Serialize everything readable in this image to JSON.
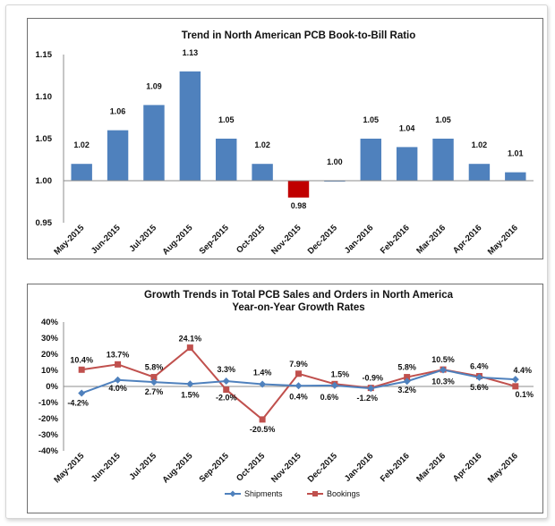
{
  "colors": {
    "bar": "#4f81bd",
    "bar_negative": "#c00000",
    "shipments": "#4f81bd",
    "bookings": "#c0504d",
    "axis": "#8c8c8c"
  },
  "chart_data": [
    {
      "type": "bar",
      "title": "Trend in North American PCB Book-to-Bill Ratio",
      "categories": [
        "May-2015",
        "Jun-2015",
        "Jul-2015",
        "Aug-2015",
        "Sep-2015",
        "Oct-2015",
        "Nov-2015",
        "Dec-2015",
        "Jan-2016",
        "Feb-2016",
        "Mar-2016",
        "Apr-2016",
        "May-2016"
      ],
      "values": [
        1.02,
        1.06,
        1.09,
        1.13,
        1.05,
        1.02,
        0.98,
        1.0,
        1.05,
        1.04,
        1.05,
        1.02,
        1.01
      ],
      "data_labels": [
        "1.02",
        "1.06",
        "1.09",
        "1.13",
        "1.05",
        "1.02",
        "0.98",
        "1.00",
        "1.05",
        "1.04",
        "1.05",
        "1.02",
        "1.01"
      ],
      "ylim": [
        0.95,
        1.15
      ],
      "yticks": [
        "0.95",
        "1.00",
        "1.05",
        "1.10",
        "1.15"
      ],
      "xlabel": "",
      "ylabel": "",
      "baseline": 1.0
    },
    {
      "type": "line",
      "title": "Growth Trends in Total PCB Sales and Orders in North America",
      "subtitle": "Year-on-Year Growth Rates",
      "categories": [
        "May-2015",
        "Jun-2015",
        "Jul-2015",
        "Aug-2015",
        "Sep-2015",
        "Oct-2015",
        "Nov-2015",
        "Dec-2015",
        "Jan-2016",
        "Feb-2016",
        "Mar-2016",
        "Apr-2016",
        "May-2016"
      ],
      "ylim": [
        -40,
        40
      ],
      "yticks": [
        "-40%",
        "-30%",
        "-20%",
        "-10%",
        "0%",
        "10%",
        "20%",
        "30%",
        "40%"
      ],
      "series": [
        {
          "name": "Shipments",
          "values": [
            -4.2,
            4.0,
            2.7,
            1.5,
            3.3,
            1.4,
            0.4,
            0.6,
            -1.2,
            3.2,
            10.3,
            5.6,
            4.4
          ],
          "labels": [
            "-4.2%",
            "4.0%",
            "2.7%",
            "1.5%",
            "",
            "",
            "0.4%",
            "0.6%",
            "-1.2%",
            "3.2%",
            "10.3%",
            "5.6%",
            "4.4%"
          ]
        },
        {
          "name": "Bookings",
          "values": [
            10.4,
            13.7,
            5.8,
            24.1,
            -2.0,
            -20.5,
            7.9,
            1.5,
            -0.9,
            5.8,
            10.5,
            6.4,
            0.1
          ],
          "labels": [
            "10.4%",
            "13.7%",
            "5.8%",
            "24.1%",
            "-2.0%",
            "-20.5%",
            "7.9%",
            "1.5%",
            "-0.9%",
            "5.8%",
            "10.5%",
            "6.4%",
            "0.1%"
          ]
        }
      ],
      "extra_labels": [
        "3.3%",
        "1.4%"
      ],
      "legend": "bottom"
    }
  ]
}
